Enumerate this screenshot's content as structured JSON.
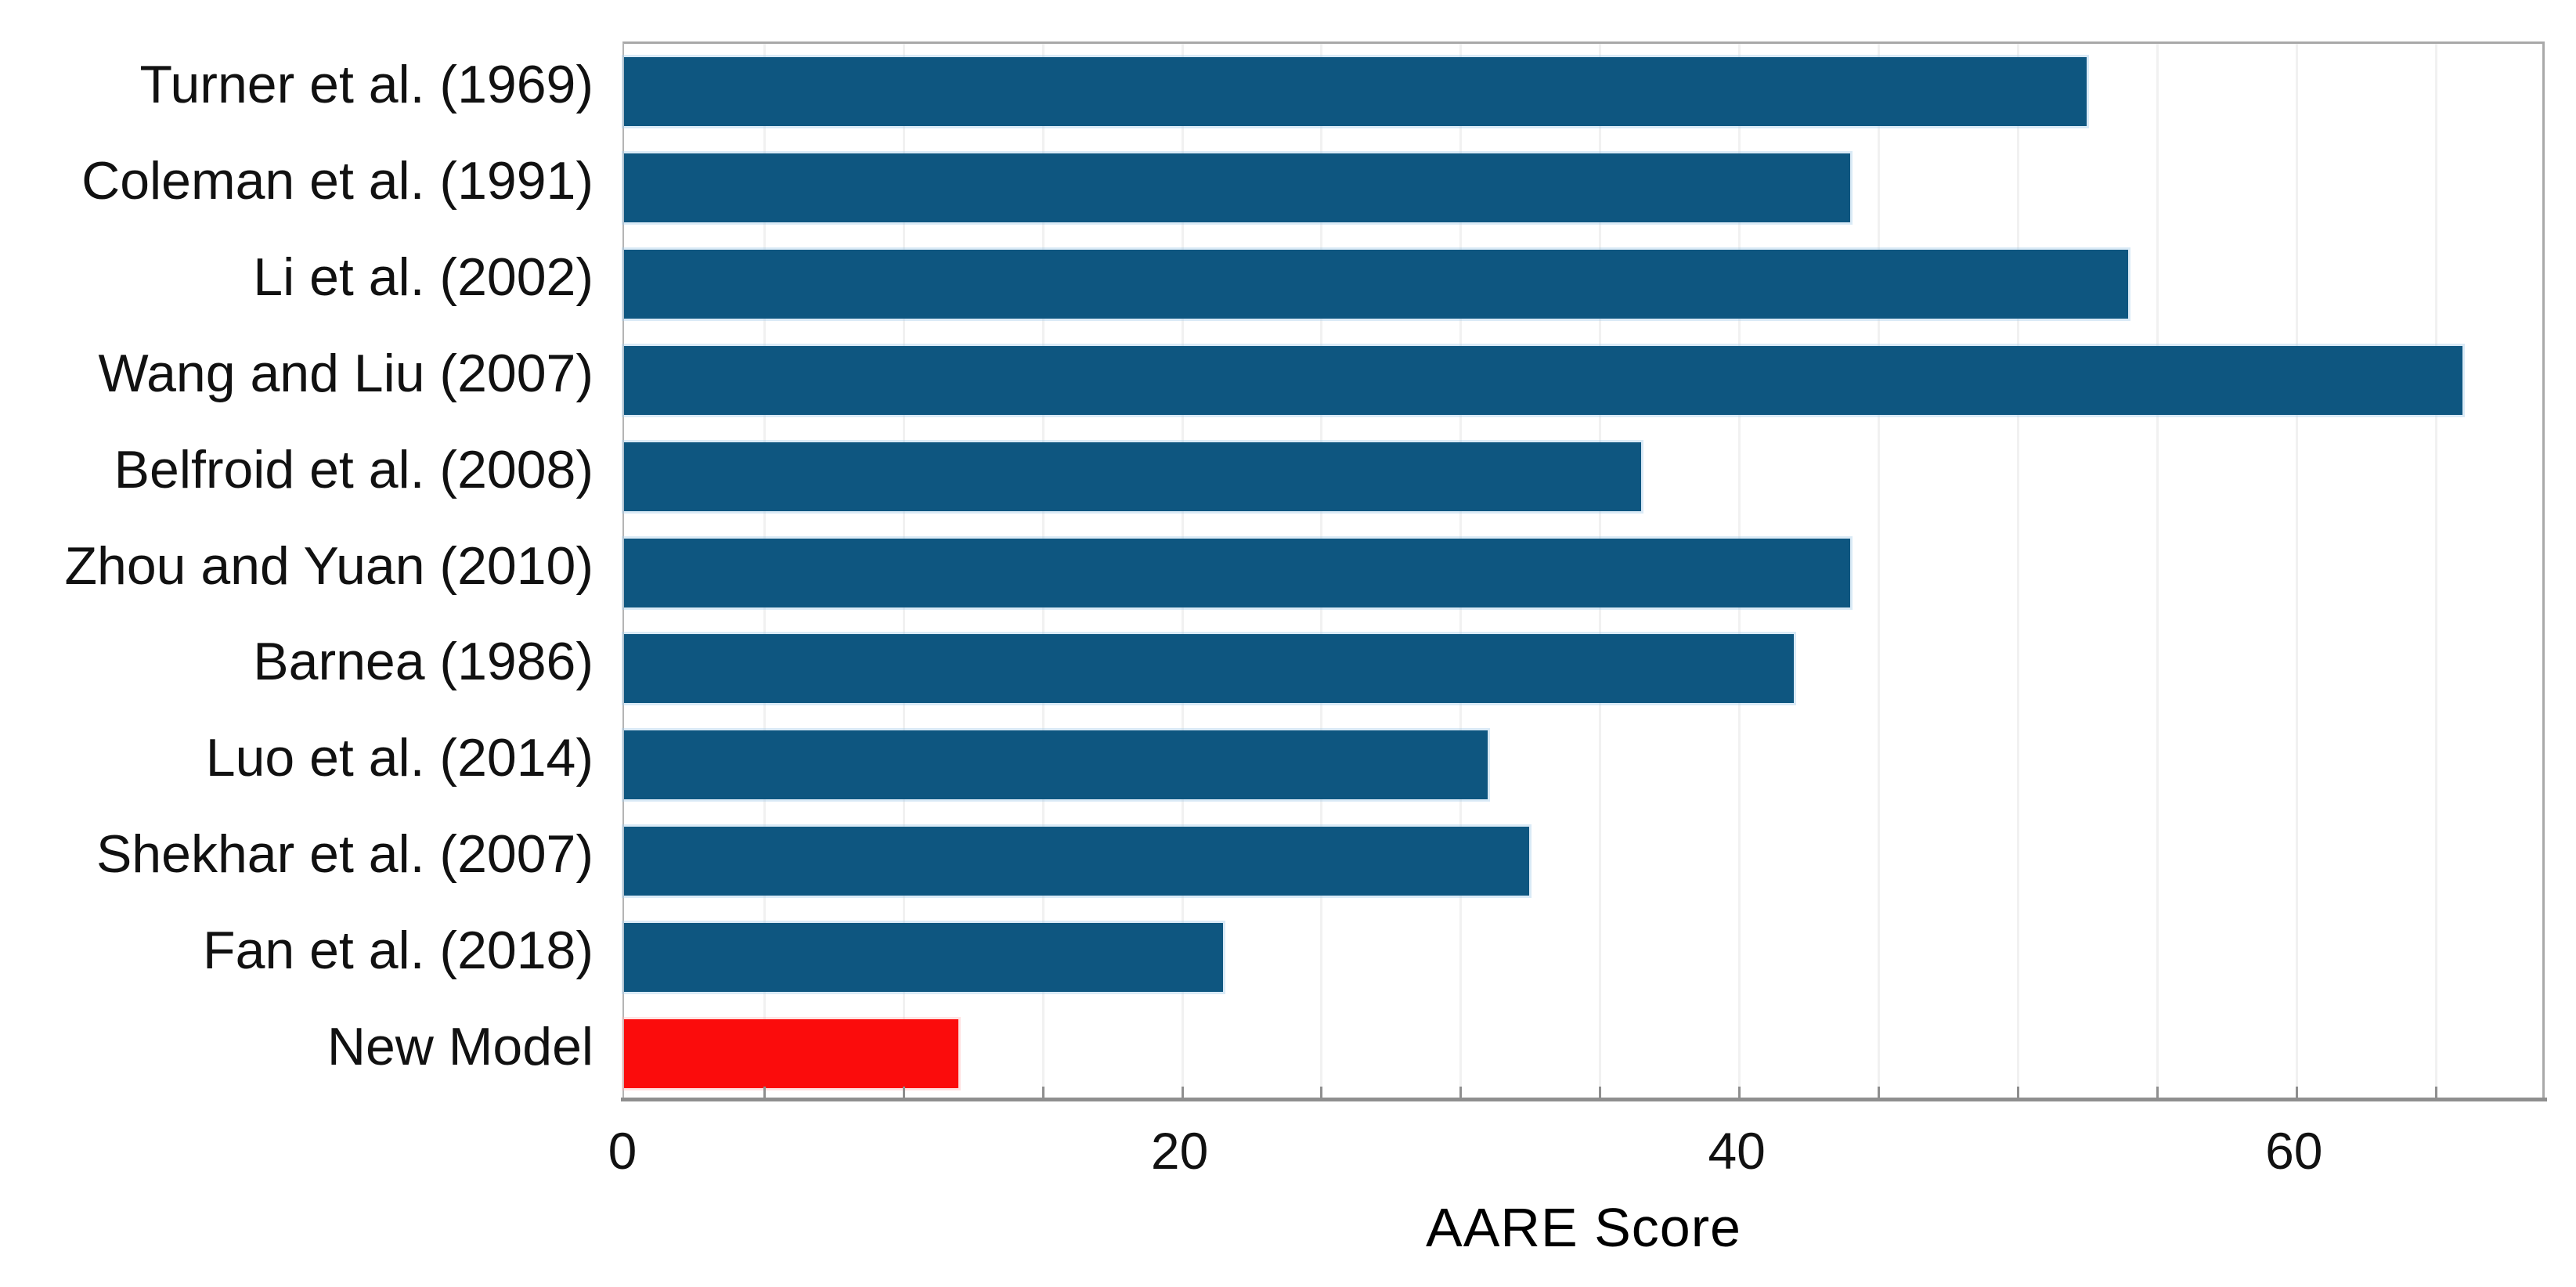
{
  "chart_data": {
    "type": "bar",
    "orientation": "horizontal",
    "title": "",
    "xlabel": "AARE Score",
    "ylabel": "",
    "categories": [
      "Turner et al. (1969)",
      "Coleman et al. (1991)",
      "Li et al. (2002)",
      "Wang and Liu (2007)",
      "Belfroid et al. (2008)",
      "Zhou and Yuan (2010)",
      "Barnea (1986)",
      "Luo et al. (2014)",
      "Shekhar et al. (2007)",
      "Fan et al. (2018)",
      "New Model"
    ],
    "values": [
      52.5,
      44,
      54,
      66,
      36.5,
      44,
      42,
      31,
      32.5,
      21.5,
      12
    ],
    "bar_color": "#0e5680",
    "highlight_index": 10,
    "highlight_color": "#fb0c0c",
    "xlim": [
      0,
      69
    ],
    "xticks": [
      0,
      20,
      40,
      60
    ],
    "minor_tick_step": 5,
    "grid": "vertical, every 5 units, light gray",
    "legend": "none",
    "plot_border": "gray box",
    "background": "#ffffff"
  }
}
